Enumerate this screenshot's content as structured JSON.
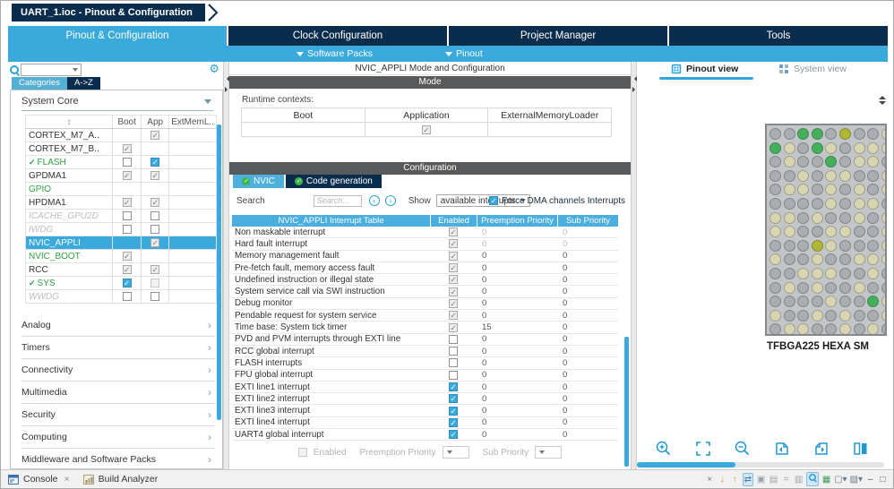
{
  "window": {
    "title": "UART_1.ioc - Pinout & Configuration"
  },
  "tabs": [
    {
      "label": "Pinout & Configuration",
      "active": true
    },
    {
      "label": "Clock Configuration",
      "active": false
    },
    {
      "label": "Project Manager",
      "active": false
    },
    {
      "label": "Tools",
      "active": false
    }
  ],
  "subnav": {
    "software_packs": "Software Packs",
    "pinout": "Pinout"
  },
  "sidebar": {
    "search_value": "",
    "tabs": [
      "Categories",
      "A->Z"
    ],
    "section_header": "System Core",
    "table": {
      "headers": [
        "Boot",
        "App",
        "ExtMemL.."
      ],
      "rows": [
        {
          "name": "CORTEX_M7_A..",
          "style": "black",
          "prefix_check": false,
          "selected": false,
          "boot": "none",
          "app": "on-gray",
          "ext": "none"
        },
        {
          "name": "CORTEX_M7_B..",
          "style": "black",
          "prefix_check": false,
          "selected": false,
          "boot": "on-gray",
          "app": "none",
          "ext": "none"
        },
        {
          "name": "FLASH",
          "style": "green",
          "prefix_check": true,
          "selected": false,
          "boot": "off",
          "app": "on-blue",
          "ext": "none"
        },
        {
          "name": "GPDMA1",
          "style": "black",
          "prefix_check": false,
          "selected": false,
          "boot": "on-gray",
          "app": "on-gray",
          "ext": "none"
        },
        {
          "name": "GPIO",
          "style": "green",
          "prefix_check": false,
          "selected": false,
          "boot": "none",
          "app": "none",
          "ext": "none"
        },
        {
          "name": "HPDMA1",
          "style": "black",
          "prefix_check": false,
          "selected": false,
          "boot": "on-gray",
          "app": "on-gray",
          "ext": "none"
        },
        {
          "name": "ICACHE_GPU2D",
          "style": "dim",
          "prefix_check": false,
          "selected": false,
          "boot": "off",
          "app": "off",
          "ext": "none"
        },
        {
          "name": "IWDG",
          "style": "dim",
          "prefix_check": false,
          "selected": false,
          "boot": "off",
          "app": "off",
          "ext": "none"
        },
        {
          "name": "NVIC_APPLI",
          "style": "black",
          "prefix_check": false,
          "selected": true,
          "boot": "none",
          "app": "on-gray",
          "ext": "none"
        },
        {
          "name": "NVIC_BOOT",
          "style": "green",
          "prefix_check": false,
          "selected": false,
          "boot": "on-gray",
          "app": "none",
          "ext": "none"
        },
        {
          "name": "RCC",
          "style": "black",
          "prefix_check": false,
          "selected": false,
          "boot": "on-gray",
          "app": "on-gray",
          "ext": "none"
        },
        {
          "name": "SYS",
          "style": "green",
          "prefix_check": true,
          "selected": false,
          "boot": "on-blue",
          "app": "off-dim",
          "ext": "none"
        },
        {
          "name": "WWDG",
          "style": "dim",
          "prefix_check": false,
          "selected": false,
          "boot": "off",
          "app": "off",
          "ext": "none"
        }
      ]
    },
    "sections": [
      "Analog",
      "Timers",
      "Connectivity",
      "Multimedia",
      "Security",
      "Computing",
      "Middleware and Software Packs"
    ]
  },
  "mode": {
    "panel_title": "NVIC_APPLI Mode and Configuration",
    "header": "Mode",
    "runtime_label": "Runtime contexts:",
    "columns": [
      "Boot",
      "Application",
      "ExternalMemoryLoader"
    ],
    "checked_column": "Application"
  },
  "config": {
    "header": "Configuration",
    "tabs": [
      {
        "label": "NVIC",
        "active": true
      },
      {
        "label": "Code generation",
        "active": false
      }
    ],
    "search_label": "Search",
    "search_placeholder": "Search...",
    "show_label": "Show",
    "show_value": "available interrupts",
    "force_dma_label": "Force DMA channels Interrupts",
    "force_dma_checked": true,
    "table_headers": [
      "NVIC_APPLI Interrupt Table",
      "Enabled",
      "Preemption Priority",
      "Sub Priority"
    ],
    "interrupts": [
      {
        "name": "Non maskable interrupt",
        "enabled": "on-gray",
        "pre": "0",
        "sub": "0",
        "dim": true
      },
      {
        "name": "Hard fault interrupt",
        "enabled": "on-gray",
        "pre": "0",
        "sub": "0",
        "dim": true
      },
      {
        "name": "Memory management fault",
        "enabled": "on-gray",
        "pre": "0",
        "sub": "0",
        "dim": false
      },
      {
        "name": "Pre-fetch fault, memory access fault",
        "enabled": "on-gray",
        "pre": "0",
        "sub": "0",
        "dim": false
      },
      {
        "name": "Undefined instruction or illegal state",
        "enabled": "on-gray",
        "pre": "0",
        "sub": "0",
        "dim": false
      },
      {
        "name": "System service call via SWI instruction",
        "enabled": "on-gray",
        "pre": "0",
        "sub": "0",
        "dim": false
      },
      {
        "name": "Debug monitor",
        "enabled": "on-gray",
        "pre": "0",
        "sub": "0",
        "dim": false
      },
      {
        "name": "Pendable request for system service",
        "enabled": "on-gray",
        "pre": "0",
        "sub": "0",
        "dim": false
      },
      {
        "name": "Time base: System tick timer",
        "enabled": "on-gray",
        "pre": "15",
        "sub": "0",
        "dim": false
      },
      {
        "name": "PVD and PVM interrupts through EXTI line",
        "enabled": "off",
        "pre": "0",
        "sub": "0",
        "dim": false
      },
      {
        "name": "RCC global interrupt",
        "enabled": "off",
        "pre": "0",
        "sub": "0",
        "dim": false
      },
      {
        "name": "FLASH interrupts",
        "enabled": "off",
        "pre": "0",
        "sub": "0",
        "dim": false
      },
      {
        "name": "FPU global interrupt",
        "enabled": "off",
        "pre": "0",
        "sub": "0",
        "dim": false
      },
      {
        "name": "EXTI line1 interrupt",
        "enabled": "on-blue",
        "pre": "0",
        "sub": "0",
        "dim": false
      },
      {
        "name": "EXTI line2 interrupt",
        "enabled": "on-blue",
        "pre": "0",
        "sub": "0",
        "dim": false
      },
      {
        "name": "EXTI line3 interrupt",
        "enabled": "on-blue",
        "pre": "0",
        "sub": "0",
        "dim": false
      },
      {
        "name": "EXTI line4 interrupt",
        "enabled": "on-blue",
        "pre": "0",
        "sub": "0",
        "dim": false
      },
      {
        "name": "UART4 global interrupt",
        "enabled": "on-blue",
        "pre": "0",
        "sub": "0",
        "dim": false
      }
    ],
    "footer": {
      "enabled_label": "Enabled",
      "pre_label": "Preemption Priority",
      "sub_label": "Sub Priority"
    }
  },
  "pinout": {
    "tabs": [
      {
        "label": "Pinout view",
        "active": true
      },
      {
        "label": "System view",
        "active": false
      }
    ],
    "chip_label": "TFBGA225 HEXA SM",
    "chip": {
      "rows": 15,
      "cols": 15,
      "palette": {
        "g": "#a9aeb3",
        "b": "#d8d5b2",
        "G": "#44b05b",
        "O": "#b0b832"
      },
      "pattern": [
        "ggGGgOggbggbgbg",
        "GbgGbgbbbgbgbgb",
        "gbggGgbbgbbgbgb",
        "ggbgbbggbbgbggb",
        "gbbgbgbgbbggbgb",
        "ggggbgbbgbgbbgg",
        "bbgbggbgbggbgbg",
        "bbggbbggbgbbggb",
        "gggObgggbggbbgb",
        "bggbggbbbgggbgb",
        "ggbbbggbgbgbggb",
        "gbgbggbggbbgbgg",
        "ggggbggGbggbgbb",
        "bggbgbggbgbggbg",
        "gbbggbgbggbbgbg"
      ]
    }
  },
  "statusbar": {
    "tabs": [
      {
        "label": "Console",
        "closable": true
      },
      {
        "label": "Build Analyzer",
        "closable": false
      }
    ],
    "icons": [
      {
        "name": "close-icon",
        "glyph": "×",
        "color": "#777777"
      },
      {
        "name": "scroll-lock-down-icon",
        "glyph": "↓",
        "color": "#d99c1e"
      },
      {
        "name": "scroll-lock-up-icon",
        "glyph": "↑",
        "color": "#d99c1e"
      },
      {
        "name": "link-with-editor-icon",
        "glyph": "⇄",
        "color": "#4a7ba6",
        "hl": true
      },
      {
        "name": "pin-console-icon",
        "glyph": "▣",
        "color": "#9aa4ad"
      },
      {
        "name": "snapshot-icon",
        "glyph": "▤",
        "color": "#9aa4ad"
      },
      {
        "name": "word-wrap-icon",
        "glyph": "=",
        "color": "#9aa4ad"
      },
      {
        "name": "show-console-icon",
        "glyph": "▥",
        "color": "#9aa4ad"
      },
      {
        "name": "search-console-icon",
        "mag": true,
        "hl": true
      },
      {
        "name": "new-console-icon",
        "glyph": "▦",
        "color": "#3f9e5a"
      },
      {
        "name": "display-console-dropdown-icon",
        "glyph": "▢▾",
        "color": "#6b7d8a"
      },
      {
        "name": "open-console-dropdown-icon",
        "glyph": "▧▾",
        "color": "#6b7d8a"
      },
      {
        "name": "minimize-icon",
        "glyph": "–",
        "color": "#555555"
      },
      {
        "name": "maximize-icon",
        "glyph": "□",
        "color": "#555555"
      }
    ]
  }
}
